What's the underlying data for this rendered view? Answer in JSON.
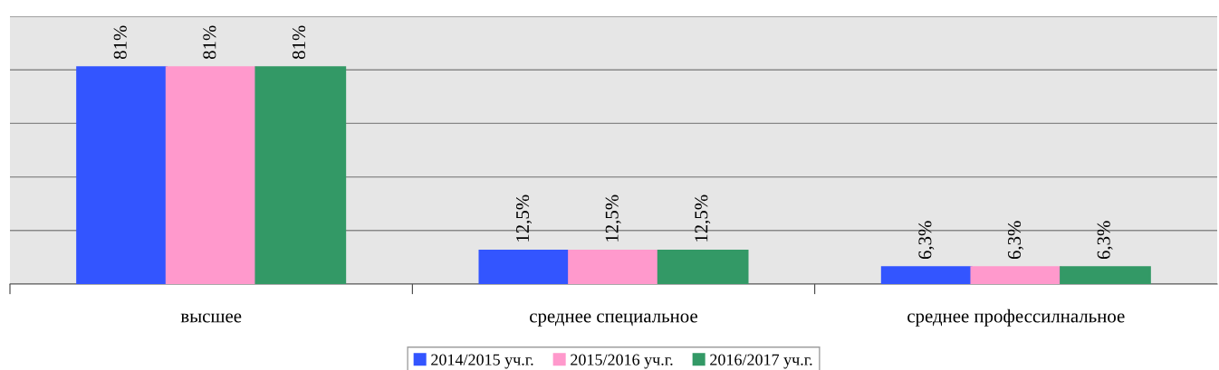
{
  "chart_data": {
    "type": "bar",
    "categories": [
      "высшее",
      "среднее специальное",
      "среднее профессилнальное"
    ],
    "series": [
      {
        "name": "2014/2015 уч.г.",
        "color": "#3355ff",
        "values": [
          81,
          12.5,
          6.3
        ],
        "value_labels": [
          "81%",
          "12,5%",
          "6,3%"
        ]
      },
      {
        "name": "2015/2016 уч.г.",
        "color": "#ff99cc",
        "values": [
          81,
          12.5,
          6.3
        ],
        "value_labels": [
          "81%",
          "12,5%",
          "6,3%"
        ]
      },
      {
        "name": "2016/2017 уч.г.",
        "color": "#339966",
        "values": [
          81,
          12.5,
          6.3
        ],
        "value_labels": [
          "81%",
          "12,5%",
          "6,3%"
        ]
      }
    ],
    "ylim": [
      0,
      100
    ],
    "yticks": [
      {
        "value": 0,
        "label": null
      },
      {
        "value": 20,
        "label": null
      },
      {
        "value": 40,
        "label": null
      },
      {
        "value": 60,
        "label": null
      },
      {
        "value": 80,
        "label": null
      },
      {
        "value": 100,
        "label": null
      }
    ],
    "tick_labels": "x",
    "grid": "y",
    "legend": "bottom"
  }
}
